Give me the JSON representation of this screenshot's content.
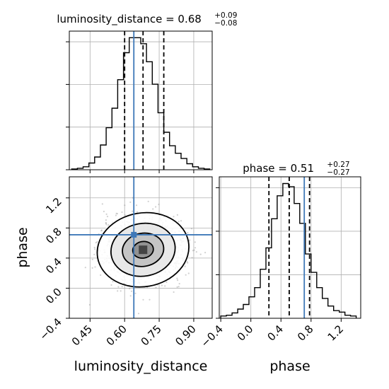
{
  "chart_data": {
    "type": "corner",
    "colors": {
      "truth": "#3e78b8",
      "hist": "#000000",
      "grid": "#b0b0b0"
    },
    "panels": [
      {
        "name": "luminosity_distance-marginal",
        "type": "histogram",
        "title": {
          "base": "luminosity_distance = 0.68",
          "sup": "+0.09",
          "sub": "−0.08"
        },
        "xlim": [
          0.36,
          0.98
        ],
        "bin_edges": [
          0.37,
          0.395,
          0.42,
          0.445,
          0.47,
          0.495,
          0.52,
          0.545,
          0.57,
          0.595,
          0.62,
          0.645,
          0.67,
          0.695,
          0.72,
          0.745,
          0.77,
          0.795,
          0.82,
          0.845,
          0.87,
          0.895,
          0.92,
          0.945,
          0.97
        ],
        "counts": [
          1,
          2,
          4,
          9,
          17,
          33,
          56,
          82,
          120,
          156,
          176,
          176,
          168,
          144,
          114,
          76,
          50,
          32,
          22,
          15,
          8,
          4,
          2,
          1
        ],
        "quantiles": [
          0.6,
          0.68,
          0.77
        ],
        "truth": 0.64
      },
      {
        "name": "phase-marginal",
        "type": "histogram",
        "title": {
          "base": "phase = 0.51",
          "sup": "+0.27",
          "sub": "−0.27"
        },
        "xlim": [
          -0.42,
          1.46
        ],
        "bin_edges": [
          -0.4,
          -0.325,
          -0.25,
          -0.175,
          -0.1,
          -0.025,
          0.05,
          0.125,
          0.2,
          0.275,
          0.35,
          0.425,
          0.5,
          0.575,
          0.65,
          0.725,
          0.8,
          0.875,
          0.95,
          1.025,
          1.1,
          1.175,
          1.25,
          1.325,
          1.4
        ],
        "counts": [
          3,
          4,
          7,
          12,
          18,
          28,
          40,
          64,
          92,
          130,
          160,
          176,
          172,
          150,
          124,
          84,
          60,
          40,
          26,
          16,
          10,
          8,
          4,
          3
        ],
        "quantiles": [
          0.24,
          0.51,
          0.78
        ],
        "truth": 0.71,
        "xticks": [
          "−0.4",
          "0.0",
          "0.4",
          "0.8",
          "1.2"
        ],
        "xtick_values": [
          -0.4,
          0.0,
          0.4,
          0.8,
          1.2
        ],
        "xlabel": "phase"
      },
      {
        "name": "joint-2d",
        "type": "2d-histogram-contour",
        "xlim": [
          0.36,
          0.98
        ],
        "ylim": [
          -0.4,
          1.48
        ],
        "center": [
          0.68,
          0.51
        ],
        "truth": [
          0.64,
          0.71
        ],
        "contour_radii": [
          [
            0.045,
            0.11
          ],
          [
            0.09,
            0.22
          ],
          [
            0.14,
            0.35
          ],
          [
            0.2,
            0.49
          ]
        ],
        "xticks": [
          "0.45",
          "0.60",
          "0.75",
          "0.90"
        ],
        "xtick_values": [
          0.45,
          0.6,
          0.75,
          0.9
        ],
        "yticks": [
          "−0.4",
          "0.0",
          "0.4",
          "0.8",
          "1.2"
        ],
        "ytick_values": [
          -0.4,
          0.0,
          0.4,
          0.8,
          1.2
        ],
        "xlabel": "luminosity_distance",
        "ylabel": "phase"
      }
    ]
  }
}
